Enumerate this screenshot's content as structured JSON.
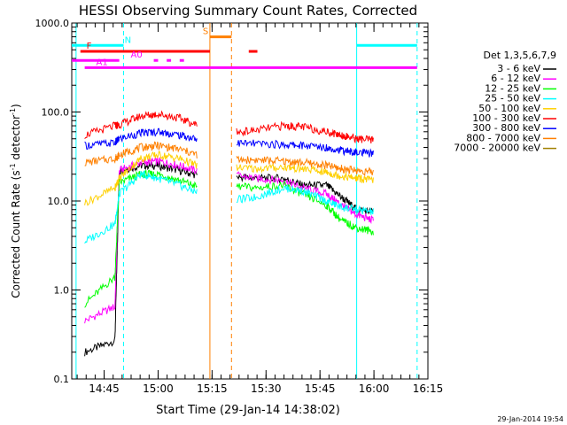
{
  "chart_data": {
    "type": "line",
    "title": "HESSI Observing Summary Count Rates, Corrected",
    "xlabel": "Start Time (29-Jan-14 14:38:02)",
    "ylabel_main": "Corrected Count Rate (s",
    "ylabel_sup1": "-1",
    "ylabel_mid": " detector",
    "ylabel_sup2": "-1",
    "ylabel_end": ")",
    "timestamp": "29-Jan-2014 19:54",
    "y_scale": "log",
    "ylim": [
      0.1,
      1000
    ],
    "xlim_minutes": [
      14.6,
      16.25
    ],
    "x_ticks": [
      "14:45",
      "15:00",
      "15:15",
      "15:30",
      "15:45",
      "16:00",
      "16:15"
    ],
    "y_ticks": [
      "0.1",
      "1.0",
      "10.0",
      "100.0",
      "1000.0"
    ],
    "legend_title": "Det 1,3,5,6,7,9",
    "legend_position": "right",
    "series": [
      {
        "name": "3 - 6 keV",
        "color": "#000000",
        "points": [
          [
            14.66,
            0.2
          ],
          [
            14.8,
            0.27
          ],
          [
            14.82,
            22
          ],
          [
            14.92,
            25
          ],
          [
            15.0,
            25
          ],
          [
            15.1,
            22
          ],
          [
            15.2,
            19
          ],
          [
            15.32,
            19
          ],
          [
            15.45,
            18
          ],
          [
            15.58,
            18
          ],
          [
            15.67,
            15
          ],
          [
            15.78,
            15
          ],
          [
            15.85,
            11
          ],
          [
            15.92,
            8
          ],
          [
            16.0,
            7.5
          ]
        ]
      },
      {
        "name": "6 - 12 keV",
        "color": "#ff00ff",
        "points": [
          [
            14.66,
            0.45
          ],
          [
            14.8,
            0.65
          ],
          [
            14.82,
            22
          ],
          [
            14.92,
            27
          ],
          [
            15.0,
            28
          ],
          [
            15.1,
            25
          ],
          [
            15.2,
            21
          ],
          [
            15.32,
            20
          ],
          [
            15.45,
            18
          ],
          [
            15.58,
            17
          ],
          [
            15.67,
            14
          ],
          [
            15.78,
            12
          ],
          [
            15.85,
            9
          ],
          [
            15.92,
            7
          ],
          [
            16.0,
            6
          ]
        ]
      },
      {
        "name": "12 - 25 keV",
        "color": "#00ff00",
        "points": [
          [
            14.66,
            0.7
          ],
          [
            14.8,
            1.4
          ],
          [
            14.82,
            16
          ],
          [
            14.92,
            20
          ],
          [
            15.0,
            20
          ],
          [
            15.1,
            17
          ],
          [
            15.2,
            14
          ],
          [
            15.32,
            15
          ],
          [
            15.45,
            14
          ],
          [
            15.58,
            15
          ],
          [
            15.67,
            12
          ],
          [
            15.78,
            9
          ],
          [
            15.85,
            6
          ],
          [
            15.92,
            5
          ],
          [
            16.0,
            4.5
          ]
        ]
      },
      {
        "name": "25 - 50 keV",
        "color": "#00ffff",
        "points": [
          [
            14.66,
            3.5
          ],
          [
            14.8,
            5.5
          ],
          [
            14.82,
            12
          ],
          [
            14.92,
            20
          ],
          [
            15.0,
            18
          ],
          [
            15.1,
            15
          ],
          [
            15.2,
            12
          ],
          [
            15.32,
            10
          ],
          [
            15.45,
            11
          ],
          [
            15.58,
            14
          ],
          [
            15.67,
            13
          ],
          [
            15.78,
            10
          ],
          [
            15.85,
            8.5
          ],
          [
            15.92,
            8
          ],
          [
            16.0,
            7.5
          ]
        ]
      },
      {
        "name": "50 - 100 keV",
        "color": "#ffd000",
        "points": [
          [
            14.66,
            9.5
          ],
          [
            14.8,
            14
          ],
          [
            14.82,
            18
          ],
          [
            14.92,
            30
          ],
          [
            15.0,
            33
          ],
          [
            15.1,
            30
          ],
          [
            15.2,
            24
          ],
          [
            15.32,
            24
          ],
          [
            15.45,
            23
          ],
          [
            15.58,
            24
          ],
          [
            15.67,
            23
          ],
          [
            15.78,
            21
          ],
          [
            15.85,
            19
          ],
          [
            15.92,
            18
          ],
          [
            16.0,
            17
          ]
        ]
      },
      {
        "name": "100 - 300 keV",
        "color": "#ff0000",
        "points": [
          [
            14.66,
            55
          ],
          [
            14.8,
            70
          ],
          [
            14.82,
            72
          ],
          [
            14.92,
            90
          ],
          [
            15.0,
            95
          ],
          [
            15.1,
            85
          ],
          [
            15.2,
            68
          ],
          [
            15.32,
            58
          ],
          [
            15.45,
            62
          ],
          [
            15.58,
            70
          ],
          [
            15.67,
            68
          ],
          [
            15.78,
            60
          ],
          [
            15.85,
            55
          ],
          [
            15.92,
            50
          ],
          [
            16.0,
            48
          ]
        ]
      },
      {
        "name": "300 - 800 keV",
        "color": "#0000ff",
        "points": [
          [
            14.66,
            42
          ],
          [
            14.8,
            45
          ],
          [
            14.82,
            50
          ],
          [
            14.92,
            58
          ],
          [
            15.0,
            60
          ],
          [
            15.1,
            55
          ],
          [
            15.2,
            48
          ],
          [
            15.32,
            45
          ],
          [
            15.45,
            44
          ],
          [
            15.58,
            43
          ],
          [
            15.67,
            42
          ],
          [
            15.78,
            40
          ],
          [
            15.85,
            37
          ],
          [
            15.92,
            35
          ],
          [
            16.0,
            34
          ]
        ]
      },
      {
        "name": "800 - 7000 keV",
        "color": "#ff8000",
        "points": [
          [
            14.66,
            27
          ],
          [
            14.8,
            30
          ],
          [
            14.82,
            33
          ],
          [
            14.92,
            40
          ],
          [
            15.0,
            42
          ],
          [
            15.1,
            38
          ],
          [
            15.2,
            32
          ],
          [
            15.32,
            29
          ],
          [
            15.45,
            29
          ],
          [
            15.58,
            28
          ],
          [
            15.67,
            27
          ],
          [
            15.78,
            25
          ],
          [
            15.85,
            23
          ],
          [
            15.92,
            22
          ],
          [
            16.0,
            21
          ]
        ]
      },
      {
        "name": "7000 - 20000 keV",
        "color": "#a08000",
        "points": []
      }
    ],
    "flags": [
      {
        "label": "N",
        "color": "#00ffff",
        "y": 560,
        "segments": [
          [
            14.6,
            14.84
          ],
          [
            15.92,
            16.2
          ]
        ],
        "label_x": 14.86
      },
      {
        "label": "S",
        "color": "#ff8000",
        "y": 700,
        "segments": [
          [
            15.24,
            15.34
          ]
        ],
        "label_x": 15.22
      },
      {
        "label": "F",
        "color": "#ff0000",
        "y": 480,
        "segments": [
          [
            14.64,
            15.24
          ],
          [
            15.42,
            15.46
          ]
        ],
        "label_x": 14.68
      },
      {
        "label": "A0",
        "color": "#ff00ff",
        "y": 380,
        "segments": [
          [
            14.6,
            14.82
          ],
          [
            14.98,
            15.0
          ],
          [
            15.04,
            15.06
          ],
          [
            15.1,
            15.12
          ]
        ],
        "label_x": 14.9
      },
      {
        "label": "A1",
        "color": "#ff00ff",
        "y": 315,
        "segments": [
          [
            14.66,
            16.2
          ]
        ],
        "label_x": 14.74
      }
    ]
  }
}
